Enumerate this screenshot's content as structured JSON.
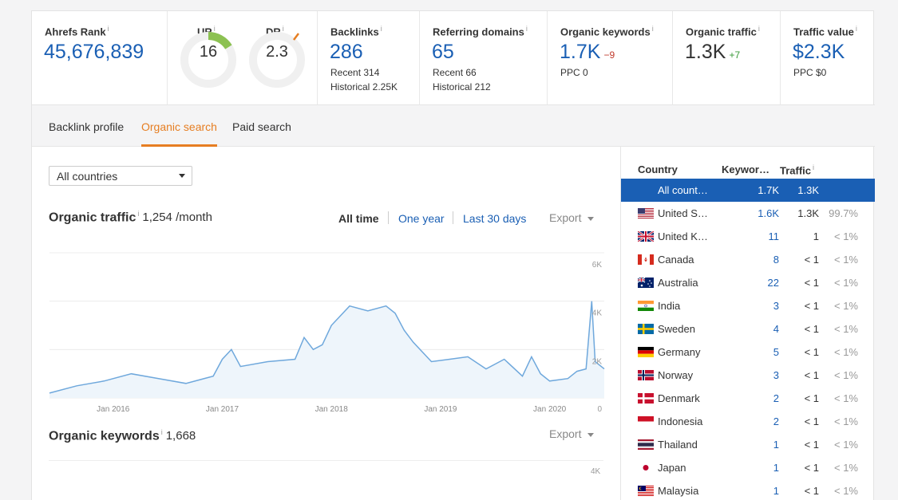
{
  "metrics": {
    "ahrefs_rank": {
      "label": "Ahrefs Rank",
      "value": "45,676,839"
    },
    "ur": {
      "label": "UR",
      "value": "16",
      "fill_fraction": 0.16
    },
    "dr": {
      "label": "DR",
      "value": "2.3",
      "fill_fraction": 0.023
    },
    "backlinks": {
      "label": "Backlinks",
      "value": "286",
      "recent": "Recent 314",
      "historical": "Historical 2.25K"
    },
    "referring_domains": {
      "label": "Referring domains",
      "value": "65",
      "recent": "Recent 66",
      "historical": "Historical 212"
    },
    "organic_keywords": {
      "label": "Organic keywords",
      "value": "1.7K",
      "delta": "−9",
      "sub": "PPC 0"
    },
    "organic_traffic": {
      "label": "Organic traffic",
      "value": "1.3K",
      "delta": "+7"
    },
    "traffic_value": {
      "label": "Traffic value",
      "value": "$2.3K",
      "sub": "PPC $0"
    },
    "info_mark": "i"
  },
  "tabs": [
    "Backlink profile",
    "Organic search",
    "Paid search"
  ],
  "active_tab": "Organic search",
  "country_select": "All countries",
  "organic_traffic_section": {
    "title": "Organic traffic",
    "value": "1,254 /month",
    "ranges": [
      "All time",
      "One year",
      "Last 30 days"
    ],
    "active_range": "All time",
    "export": "Export"
  },
  "organic_keywords_section": {
    "title": "Organic keywords",
    "value": "1,668",
    "export": "Export",
    "y_tick_top": "4K"
  },
  "chart_data": {
    "type": "area",
    "title": "",
    "xlabel": "",
    "ylabel": "",
    "x_ticks": [
      "Jan 2016",
      "Jan 2017",
      "Jan 2018",
      "Jan 2019",
      "Jan 2020"
    ],
    "y_ticks": [
      "6K",
      "4K",
      "2K",
      "0"
    ],
    "ylim": [
      0,
      6000
    ],
    "xlim": [
      "2015-06",
      "2020-07"
    ],
    "grid": true,
    "series": [
      {
        "color": "#6fa8dc",
        "x": [
          "2015-06",
          "2015-09",
          "2015-12",
          "2016-03",
          "2016-06",
          "2016-09",
          "2016-12",
          "2017-01",
          "2017-02",
          "2017-03",
          "2017-06",
          "2017-09",
          "2017-10",
          "2017-11",
          "2017-12",
          "2018-01",
          "2018-03",
          "2018-05",
          "2018-07",
          "2018-08",
          "2018-09",
          "2018-10",
          "2018-12",
          "2019-02",
          "2019-04",
          "2019-06",
          "2019-08",
          "2019-10",
          "2019-11",
          "2019-12",
          "2020-01",
          "2020-03",
          "2020-04",
          "2020-05",
          "2020-05-20",
          "2020-06",
          "2020-07"
        ],
        "values": [
          200,
          500,
          700,
          1000,
          800,
          600,
          900,
          1600,
          2000,
          1300,
          1500,
          1600,
          2500,
          2000,
          2200,
          3000,
          3800,
          3600,
          3800,
          3500,
          2800,
          2300,
          1500,
          1600,
          1700,
          1200,
          1600,
          900,
          1700,
          1000,
          700,
          800,
          1100,
          1200,
          4000,
          1500,
          1200
        ]
      }
    ]
  },
  "countries": {
    "headers": {
      "country": "Country",
      "keywords": "Keywor…",
      "traffic": "Traffic"
    },
    "rows": [
      {
        "flag": "all",
        "name": "All count…",
        "keywords": "1.7K",
        "traffic": "1.3K",
        "pct": "",
        "selected": true
      },
      {
        "flag": "us-flag",
        "name": "United S…",
        "keywords": "1.6K",
        "traffic": "1.3K",
        "pct": "99.7%"
      },
      {
        "flag": "uk-flag",
        "name": "United K…",
        "keywords": "11",
        "traffic": "1",
        "pct": "< 1%"
      },
      {
        "flag": "ca-flag",
        "name": "Canada",
        "keywords": "8",
        "traffic": "< 1",
        "pct": "< 1%"
      },
      {
        "flag": "au-flag",
        "name": "Australia",
        "keywords": "22",
        "traffic": "< 1",
        "pct": "< 1%"
      },
      {
        "flag": "in-flag",
        "name": "India",
        "keywords": "3",
        "traffic": "< 1",
        "pct": "< 1%"
      },
      {
        "flag": "se-flag",
        "name": "Sweden",
        "keywords": "4",
        "traffic": "< 1",
        "pct": "< 1%"
      },
      {
        "flag": "de-flag",
        "name": "Germany",
        "keywords": "5",
        "traffic": "< 1",
        "pct": "< 1%"
      },
      {
        "flag": "no-flag",
        "name": "Norway",
        "keywords": "3",
        "traffic": "< 1",
        "pct": "< 1%"
      },
      {
        "flag": "dk-flag",
        "name": "Denmark",
        "keywords": "2",
        "traffic": "< 1",
        "pct": "< 1%"
      },
      {
        "flag": "id-flag",
        "name": "Indonesia",
        "keywords": "2",
        "traffic": "< 1",
        "pct": "< 1%"
      },
      {
        "flag": "th-flag",
        "name": "Thailand",
        "keywords": "1",
        "traffic": "< 1",
        "pct": "< 1%"
      },
      {
        "flag": "jp-flag",
        "name": "Japan",
        "keywords": "1",
        "traffic": "< 1",
        "pct": "< 1%"
      },
      {
        "flag": "my-flag",
        "name": "Malaysia",
        "keywords": "1",
        "traffic": "< 1",
        "pct": "< 1%"
      }
    ]
  }
}
